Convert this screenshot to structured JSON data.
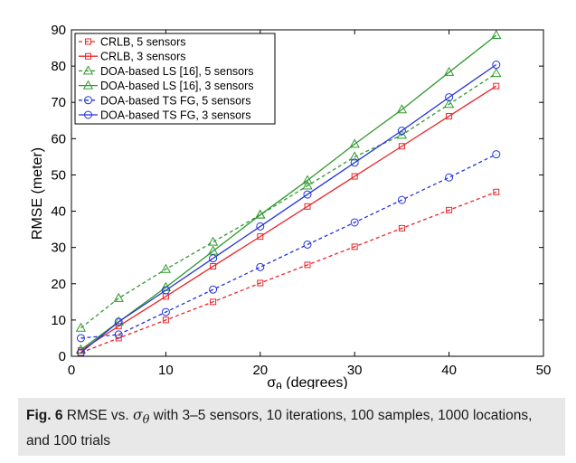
{
  "chart_data": {
    "type": "line",
    "xlabel_base": "σ",
    "xlabel_sub": "θ",
    "xlabel_rest": " (degrees)",
    "ylabel": "RMSE (meter)",
    "xlim": [
      0,
      50
    ],
    "ylim": [
      0,
      90
    ],
    "xticks": [
      0,
      10,
      20,
      30,
      40,
      50
    ],
    "yticks": [
      0,
      10,
      20,
      30,
      40,
      50,
      60,
      70,
      80,
      90
    ],
    "grid": false,
    "legend_position": "top-left",
    "x": [
      1,
      5,
      10,
      15,
      20,
      25,
      30,
      35,
      40,
      45
    ],
    "series": [
      {
        "name": "CRLB, 5 sensors",
        "color": "#e8262a",
        "dash": true,
        "marker": "square",
        "values": [
          1.0,
          5.0,
          10.0,
          15.0,
          20.2,
          25.2,
          30.2,
          35.3,
          40.3,
          45.3
        ]
      },
      {
        "name": "CRLB, 3 sensors",
        "color": "#e8262a",
        "dash": false,
        "marker": "square",
        "values": [
          1.6,
          8.3,
          16.5,
          24.8,
          33.0,
          41.3,
          49.6,
          57.9,
          66.2,
          74.5
        ]
      },
      {
        "name": "DOA-based LS [16], 5 sensors",
        "color": "#2e9a2e",
        "dash": true,
        "marker": "triangle",
        "values": [
          7.8,
          16.0,
          24.0,
          31.5,
          39.0,
          47.0,
          55.0,
          61.0,
          69.5,
          78.0
        ]
      },
      {
        "name": "DOA-based LS [16], 3 sensors",
        "color": "#2e9a2e",
        "dash": false,
        "marker": "triangle",
        "values": [
          1.8,
          9.5,
          19.0,
          29.0,
          39.0,
          48.5,
          58.5,
          68.0,
          78.3,
          88.5
        ]
      },
      {
        "name": "DOA-based TS FG, 5 sensors",
        "color": "#2233dd",
        "dash": true,
        "marker": "circle",
        "values": [
          5.0,
          6.0,
          12.2,
          18.4,
          24.6,
          30.8,
          36.9,
          43.1,
          49.3,
          55.7
        ]
      },
      {
        "name": "DOA-based TS FG, 3 sensors",
        "color": "#2233dd",
        "dash": false,
        "marker": "circle",
        "values": [
          1.0,
          9.5,
          18.2,
          27.0,
          35.8,
          44.6,
          53.4,
          62.2,
          71.4,
          80.4
        ]
      }
    ]
  },
  "caption": {
    "label": "Fig. 6",
    "text_before": " RMSE vs. ",
    "symbol": "σ",
    "symbol_sub": "θ",
    "text_after": " with 3–5 sensors, 10 iterations, 100 samples, 1000 locations, and 100 trials"
  }
}
